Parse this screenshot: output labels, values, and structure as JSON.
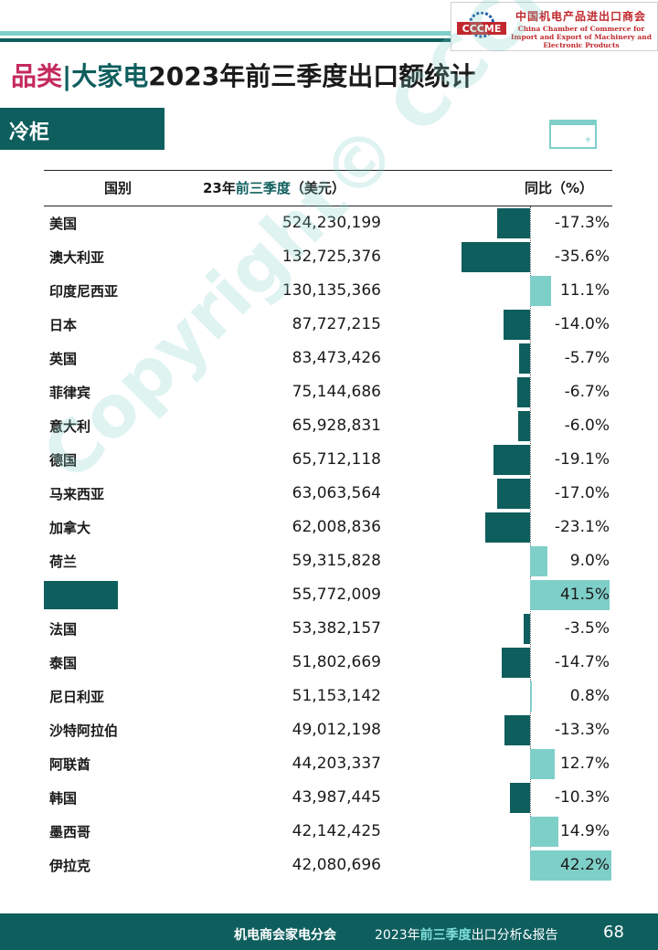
{
  "header": {
    "org_cn": "中国机电产品进出口商会",
    "org_en": "China Chamber of Commerce for Import and Export of Machinery and Electronic Products",
    "logo_text": "CCCME"
  },
  "title": {
    "category": "品类",
    "separator": "|",
    "product_group": "大家电",
    "rest": "2023年前三季度出口额统计"
  },
  "section_label": "冷柜",
  "table": {
    "col_country": "国别",
    "col_value_prefix": "23年",
    "col_value_highlight": "前三季度",
    "col_value_suffix": "（美元）",
    "col_yoy": "同比（%）"
  },
  "colors": {
    "primary": "#0f5e5e",
    "positive_bar": "#7fcfc9",
    "negative_bar": "#0f5e5e",
    "accent_pink": "#c4295f"
  },
  "chart_data": {
    "type": "table",
    "rows": [
      {
        "country": "美国",
        "value": "524,230,199",
        "yoy": -17.3,
        "yoy_label": "-17.3%"
      },
      {
        "country": "澳大利亚",
        "value": "132,725,376",
        "yoy": -35.6,
        "yoy_label": "-35.6%"
      },
      {
        "country": "印度尼西亚",
        "value": "130,135,366",
        "yoy": 11.1,
        "yoy_label": "11.1%"
      },
      {
        "country": "日本",
        "value": "87,727,215",
        "yoy": -14.0,
        "yoy_label": "-14.0%"
      },
      {
        "country": "英国",
        "value": "83,473,426",
        "yoy": -5.7,
        "yoy_label": "-5.7%"
      },
      {
        "country": "菲律宾",
        "value": "75,144,686",
        "yoy": -6.7,
        "yoy_label": "-6.7%"
      },
      {
        "country": "意大利",
        "value": "65,928,831",
        "yoy": -6.0,
        "yoy_label": "-6.0%"
      },
      {
        "country": "德国",
        "value": "65,712,118",
        "yoy": -19.1,
        "yoy_label": "-19.1%"
      },
      {
        "country": "马来西亚",
        "value": "63,063,564",
        "yoy": -17.0,
        "yoy_label": "-17.0%"
      },
      {
        "country": "加拿大",
        "value": "62,008,836",
        "yoy": -23.1,
        "yoy_label": "-23.1%"
      },
      {
        "country": "荷兰",
        "value": "59,315,828",
        "yoy": 9.0,
        "yoy_label": "9.0%"
      },
      {
        "country": "",
        "value": "55,772,009",
        "yoy": 41.5,
        "yoy_label": "41.5%",
        "country_redacted": true
      },
      {
        "country": "法国",
        "value": "53,382,157",
        "yoy": -3.5,
        "yoy_label": "-3.5%"
      },
      {
        "country": "泰国",
        "value": "51,802,669",
        "yoy": -14.7,
        "yoy_label": "-14.7%"
      },
      {
        "country": "尼日利亚",
        "value": "51,153,142",
        "yoy": 0.8,
        "yoy_label": "0.8%"
      },
      {
        "country": "沙特阿拉伯",
        "value": "49,012,198",
        "yoy": -13.3,
        "yoy_label": "-13.3%"
      },
      {
        "country": "阿联酋",
        "value": "44,203,337",
        "yoy": 12.7,
        "yoy_label": "12.7%"
      },
      {
        "country": "韩国",
        "value": "43,987,445",
        "yoy": -10.3,
        "yoy_label": "-10.3%"
      },
      {
        "country": "墨西哥",
        "value": "42,142,425",
        "yoy": 14.9,
        "yoy_label": "14.9%"
      },
      {
        "country": "伊拉克",
        "value": "42,080,696",
        "yoy": 42.2,
        "yoy_label": "42.2%"
      }
    ]
  },
  "watermark": "Copyright© CCCME",
  "footer": {
    "dept": "机电商会家电分会",
    "report_prefix": "2023年",
    "report_highlight": "前三季度",
    "report_suffix": "出口分析&报告",
    "page_number": "68"
  }
}
